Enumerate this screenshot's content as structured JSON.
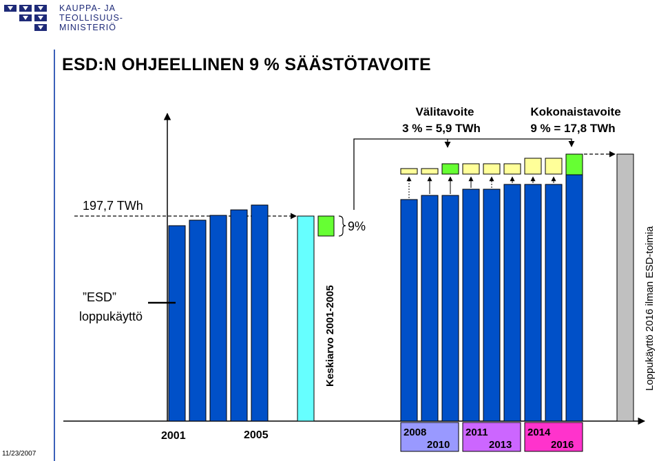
{
  "header": {
    "org_line1": "KAUPPA- JA",
    "org_line2": "TEOLLISUUS-",
    "org_line3": "MINISTERIÖ",
    "logo_icon": "ministry-logo-icon",
    "title": "ESD:N OHJEELLINEN 9 % SÄÄSTÖTAVOITE"
  },
  "footer": {
    "date": "11/23/2007"
  },
  "labels": {
    "baseline_value": "197,7 TWh",
    "esd_line1": "”ESD”",
    "esd_line2": "loppukäyttö",
    "average_label": "Keskiarvo 2001-2005",
    "pct_label": "9%",
    "interim_line1": "Välitavoite",
    "interim_line2": "3 % = 5,9 TWh",
    "total_line1": "Kokonaistavoite",
    "total_line2": "9 % = 17,8 TWh",
    "final_label": "Loppukäyttö 2016 ilman ESD-toimia",
    "year_2001": "2001",
    "year_2005": "2005"
  },
  "periods": [
    {
      "start": "2008",
      "end": "2010",
      "color": "#9999ff"
    },
    {
      "start": "2011",
      "end": "2013",
      "color": "#cc66ff"
    },
    {
      "start": "2014",
      "end": "2016",
      "color": "#ff33cc"
    }
  ],
  "colors": {
    "bar": "#0050c8",
    "average": "#66ffff",
    "saving_interim": "#ffff99",
    "saving_full": "#66ff33",
    "final": "#c0c0c0",
    "logo": "#1e2a78",
    "rule": "#3a5fb8"
  }
}
